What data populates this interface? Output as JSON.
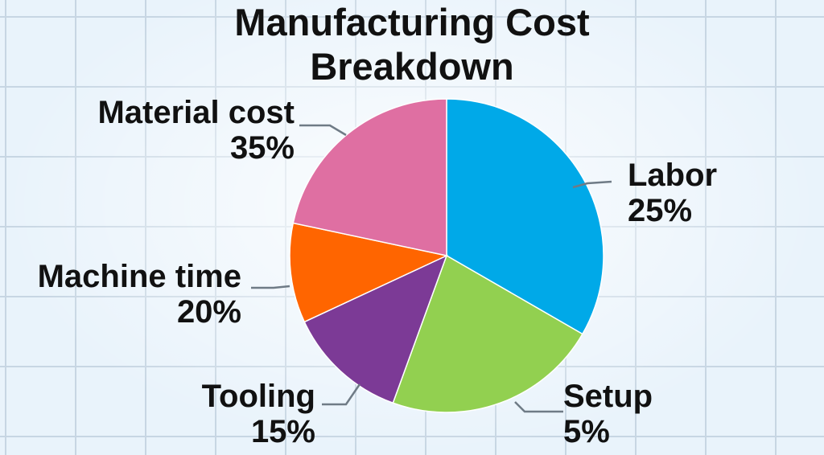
{
  "chart_data": {
    "type": "pie",
    "title_line1": "Manufacturing Cost",
    "title_line2": "Breakdown",
    "slices": [
      {
        "label": "Labor",
        "value": 25,
        "value_label": "25%",
        "color": "#00a9e8"
      },
      {
        "label": "Setup",
        "value": 5,
        "value_label": "5%",
        "color": "#92d050"
      },
      {
        "label": "Tooling",
        "value": 15,
        "value_label": "15%",
        "color": "#7c3a96"
      },
      {
        "label": "Machine time",
        "value": 20,
        "value_label": "20%",
        "color": "#ff6500"
      },
      {
        "label": "Material cost",
        "value": 35,
        "value_label": "35%",
        "color": "#df6fa2"
      }
    ]
  }
}
